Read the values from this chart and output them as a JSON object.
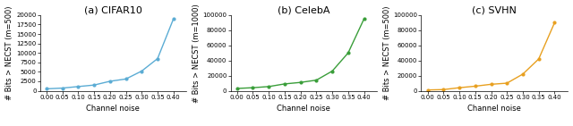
{
  "cifar10": {
    "x": [
      0.0,
      0.05,
      0.1,
      0.15,
      0.2,
      0.25,
      0.3,
      0.35,
      0.4
    ],
    "y": [
      500,
      700,
      1100,
      1500,
      2500,
      3100,
      5200,
      8500,
      19000
    ],
    "color": "#5bacd4",
    "ylabel": "# Bits > NECST (m=500)",
    "title": "(a) CIFAR10",
    "ylim": [
      0,
      20000
    ],
    "yticks": [
      0,
      2500,
      5000,
      7500,
      10000,
      12500,
      15000,
      17500,
      20000
    ]
  },
  "celeba": {
    "x": [
      0.0,
      0.05,
      0.1,
      0.15,
      0.2,
      0.25,
      0.3,
      0.35,
      0.4
    ],
    "y": [
      3000,
      4000,
      5500,
      9000,
      11000,
      14000,
      26000,
      50000,
      95000
    ],
    "color": "#3a9e3a",
    "ylabel": "# Bits > NECST (m=1000)",
    "title": "(b) CelebA",
    "ylim": [
      0,
      100000
    ],
    "yticks": [
      0,
      20000,
      40000,
      60000,
      80000,
      100000
    ]
  },
  "svhn": {
    "x": [
      0.0,
      0.05,
      0.1,
      0.15,
      0.2,
      0.25,
      0.3,
      0.35,
      0.4
    ],
    "y": [
      1000,
      1500,
      4000,
      6000,
      8500,
      10000,
      22000,
      42000,
      90000
    ],
    "color": "#e8a020",
    "ylabel": "# Bits > NECST (m=500)",
    "title": "(c) SVHN",
    "ylim": [
      0,
      100000
    ],
    "yticks": [
      0,
      20000,
      40000,
      60000,
      80000,
      100000
    ]
  },
  "xlabel": "Channel noise",
  "xticks": [
    0.0,
    0.05,
    0.1,
    0.15,
    0.2,
    0.25,
    0.3,
    0.35,
    0.4
  ],
  "xtick_labels": [
    "0.00",
    "0.05",
    "0.10",
    "0.15",
    "0.20",
    "0.25",
    "0.30",
    "0.35",
    "0.40"
  ],
  "title_fontsize": 8,
  "label_fontsize": 6,
  "tick_fontsize": 5
}
